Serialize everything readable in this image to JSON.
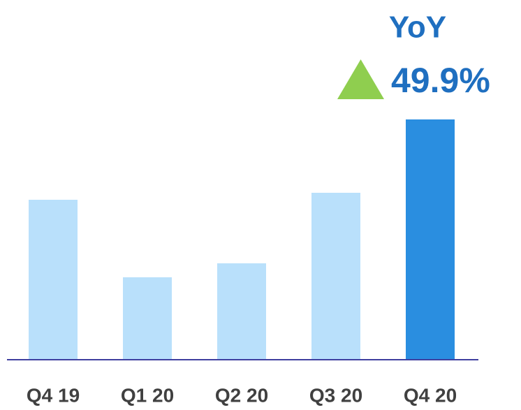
{
  "chart_data": {
    "type": "bar",
    "categories": [
      "Q4 19",
      "Q1 20",
      "Q2 20",
      "Q3 20",
      "Q4 20"
    ],
    "values": [
      229,
      118,
      138,
      239,
      344
    ],
    "colors": [
      "#b9e0fb",
      "#b9e0fb",
      "#b9e0fb",
      "#b9e0fb",
      "#2a8ee0"
    ],
    "ylim": [
      0,
      400
    ],
    "annotations": {
      "label": "YoY",
      "change": "49.9%"
    }
  }
}
